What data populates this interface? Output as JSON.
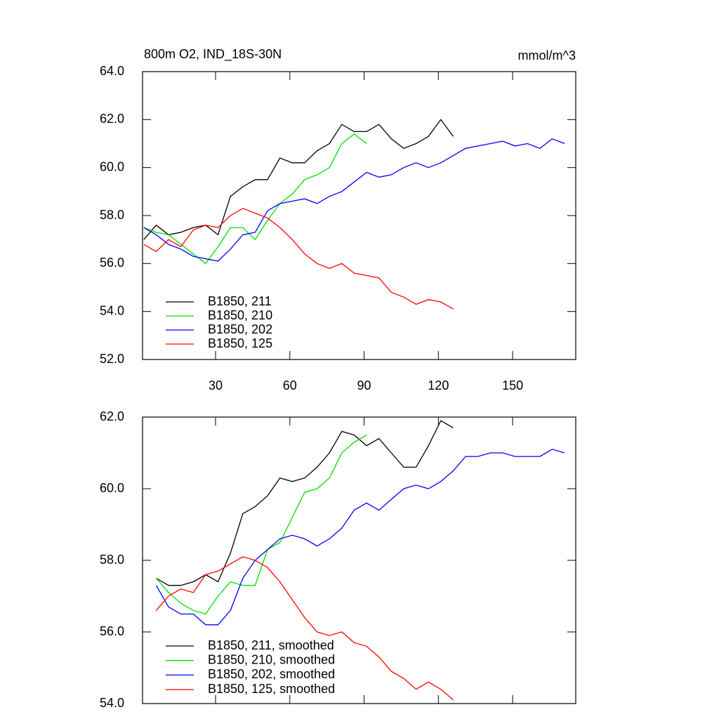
{
  "chart_data": [
    {
      "type": "line",
      "title": "800m O2, IND_18S-30N",
      "units": "mmol/m^3",
      "x": [
        1,
        6,
        11,
        16,
        21,
        26,
        31,
        36,
        41,
        46,
        51,
        56,
        61,
        66,
        71,
        76,
        81,
        86,
        91,
        96,
        101,
        106,
        111,
        116,
        121,
        126,
        131,
        136,
        141,
        146,
        151,
        156,
        161,
        166,
        171
      ],
      "xlim": [
        0.5,
        175.5
      ],
      "xticks": [
        30,
        60,
        90,
        120,
        150
      ],
      "show_xtick_labels": true,
      "ylim": [
        52,
        64
      ],
      "yticks": [
        {
          "value": 52,
          "label": "52.0"
        },
        {
          "value": 54,
          "label": "54.0"
        },
        {
          "value": 56,
          "label": "56.0"
        },
        {
          "value": 58,
          "label": "58.0"
        },
        {
          "value": 60,
          "label": "60.0"
        },
        {
          "value": 62,
          "label": "62.0"
        },
        {
          "value": 64,
          "label": "64.0"
        }
      ],
      "legend": "lower left",
      "series": [
        {
          "name": "B1850, 211",
          "color": "#000000",
          "values": [
            57.0,
            57.6,
            57.2,
            57.3,
            57.5,
            57.6,
            57.2,
            58.8,
            59.2,
            59.5,
            59.5,
            60.4,
            60.2,
            60.2,
            60.7,
            61.0,
            61.8,
            61.5,
            61.5,
            61.8,
            61.2,
            60.8,
            61.0,
            61.3,
            62.0,
            61.3,
            null,
            null,
            null,
            null,
            null,
            null,
            null,
            null,
            null
          ]
        },
        {
          "name": "B1850, 210",
          "color": "#00e000",
          "values": [
            57.5,
            57.3,
            57.2,
            56.8,
            56.4,
            56.0,
            56.7,
            57.5,
            57.5,
            57.0,
            57.8,
            58.5,
            58.9,
            59.5,
            59.7,
            60.0,
            61.0,
            61.4,
            61.0,
            null,
            null,
            null,
            null,
            null,
            null,
            null,
            null,
            null,
            null,
            null,
            null,
            null,
            null,
            null,
            null
          ]
        },
        {
          "name": "B1850, 202",
          "color": "#0000ff",
          "values": [
            57.5,
            57.2,
            56.8,
            56.6,
            56.3,
            56.2,
            56.1,
            56.6,
            57.2,
            57.3,
            58.2,
            58.5,
            58.6,
            58.7,
            58.5,
            58.8,
            59.0,
            59.4,
            59.8,
            59.6,
            59.7,
            60.0,
            60.2,
            60.0,
            60.2,
            60.5,
            60.8,
            60.9,
            61.0,
            61.1,
            60.9,
            61.0,
            60.8,
            61.2,
            61.0
          ]
        },
        {
          "name": "B1850, 125",
          "color": "#ff0000",
          "values": [
            56.8,
            56.5,
            57.0,
            56.7,
            57.4,
            57.6,
            57.5,
            58.0,
            58.3,
            58.1,
            57.9,
            57.5,
            57.0,
            56.4,
            56.0,
            55.8,
            56.0,
            55.6,
            55.5,
            55.4,
            54.8,
            54.6,
            54.3,
            54.5,
            54.4,
            54.1,
            null,
            null,
            null,
            null,
            null,
            null,
            null,
            null,
            null
          ]
        }
      ]
    },
    {
      "type": "line",
      "x": [
        1,
        6,
        11,
        16,
        21,
        26,
        31,
        36,
        41,
        46,
        51,
        56,
        61,
        66,
        71,
        76,
        81,
        86,
        91,
        96,
        101,
        106,
        111,
        116,
        121,
        126,
        131,
        136,
        141,
        146,
        151,
        156,
        161,
        166,
        171
      ],
      "xlim": [
        0.5,
        175.5
      ],
      "xticks": [
        30,
        60,
        90,
        120,
        150
      ],
      "show_xtick_labels": false,
      "ylim": [
        54,
        62
      ],
      "yticks": [
        {
          "value": 54,
          "label": "54.0"
        },
        {
          "value": 56,
          "label": "56.0"
        },
        {
          "value": 58,
          "label": "58.0"
        },
        {
          "value": 60,
          "label": "60.0"
        },
        {
          "value": 62,
          "label": "62.0"
        }
      ],
      "legend": "lower left",
      "series": [
        {
          "name": "B1850, 211, smoothed",
          "color": "#000000",
          "values": [
            null,
            57.5,
            57.3,
            57.3,
            57.4,
            57.6,
            57.4,
            58.2,
            59.3,
            59.5,
            59.8,
            60.3,
            60.2,
            60.3,
            60.6,
            61.0,
            61.6,
            61.5,
            61.2,
            61.4,
            61.0,
            60.6,
            60.6,
            61.2,
            61.9,
            61.7,
            null,
            null,
            null,
            null,
            null,
            null,
            null,
            null,
            null
          ]
        },
        {
          "name": "B1850, 210, smoothed",
          "color": "#00e000",
          "values": [
            null,
            57.5,
            57.1,
            56.8,
            56.6,
            56.5,
            57.0,
            57.4,
            57.3,
            57.3,
            58.3,
            58.5,
            59.2,
            59.9,
            60.0,
            60.3,
            61.0,
            61.3,
            61.5,
            null,
            null,
            null,
            null,
            null,
            null,
            null,
            null,
            null,
            null,
            null,
            null,
            null,
            null,
            null,
            null
          ]
        },
        {
          "name": "B1850, 202, smoothed",
          "color": "#0000ff",
          "values": [
            null,
            57.3,
            56.7,
            56.5,
            56.5,
            56.2,
            56.2,
            56.6,
            57.5,
            58.0,
            58.3,
            58.6,
            58.7,
            58.6,
            58.4,
            58.6,
            58.9,
            59.4,
            59.6,
            59.4,
            59.7,
            60.0,
            60.1,
            60.0,
            60.2,
            60.5,
            60.9,
            60.9,
            61.0,
            61.0,
            60.9,
            60.9,
            60.9,
            61.1,
            61.0
          ]
        },
        {
          "name": "B1850, 125, smoothed",
          "color": "#ff0000",
          "values": [
            null,
            56.6,
            57.0,
            57.2,
            57.1,
            57.6,
            57.7,
            57.9,
            58.1,
            58.0,
            57.8,
            57.4,
            56.9,
            56.4,
            56.0,
            55.9,
            56.0,
            55.7,
            55.6,
            55.3,
            54.9,
            54.7,
            54.4,
            54.6,
            54.4,
            54.1,
            null,
            null,
            null,
            null,
            null,
            null,
            null,
            null,
            null
          ]
        }
      ]
    }
  ]
}
